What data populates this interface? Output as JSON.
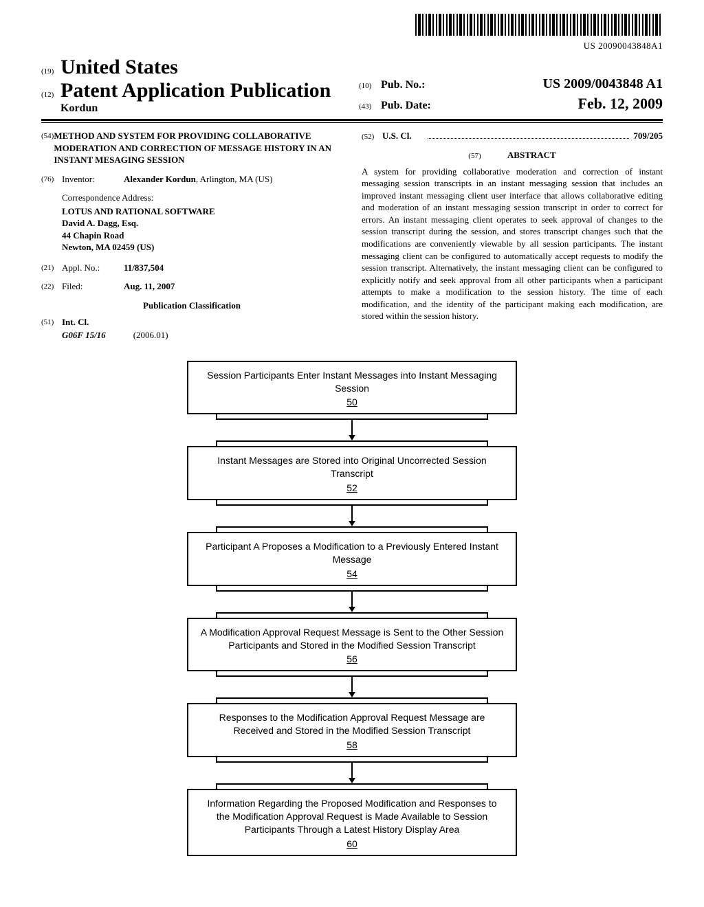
{
  "barcode_number": "US 20090043848A1",
  "header": {
    "country_sup": "(19)",
    "country": "United States",
    "pub_sup": "(12)",
    "pub_title": "Patent Application Publication",
    "author": "Kordun",
    "pubno_sup": "(10)",
    "pubno_label": "Pub. No.:",
    "pubno_value": "US 2009/0043848 A1",
    "pubdate_sup": "(43)",
    "pubdate_label": "Pub. Date:",
    "pubdate_value": "Feb. 12, 2009"
  },
  "left": {
    "title_sup": "(54)",
    "title": "METHOD AND SYSTEM FOR PROVIDING COLLABORATIVE MODERATION AND CORRECTION OF MESSAGE HISTORY IN AN INSTANT MESAGING SESSION",
    "inventor_sup": "(76)",
    "inventor_label": "Inventor:",
    "inventor_name": "Alexander Kordun",
    "inventor_loc": ", Arlington, MA (US)",
    "corr_label": "Correspondence Address:",
    "corr_firm": "LOTUS AND RATIONAL SOFTWARE",
    "corr_name": "David A. Dagg, Esq.",
    "corr_addr1": "44 Chapin Road",
    "corr_addr2": "Newton, MA 02459 (US)",
    "appl_sup": "(21)",
    "appl_label": "Appl. No.:",
    "appl_value": "11/837,504",
    "filed_sup": "(22)",
    "filed_label": "Filed:",
    "filed_value": "Aug. 11, 2007",
    "pub_class": "Publication Classification",
    "intcl_sup": "(51)",
    "intcl_label": "Int. Cl.",
    "intcl_code": "G06F 15/16",
    "intcl_year": "(2006.01)"
  },
  "right": {
    "uscl_sup": "(52)",
    "uscl_label": "U.S. Cl.",
    "uscl_value": "709/205",
    "abstract_sup": "(57)",
    "abstract_label": "ABSTRACT",
    "abstract_text": "A system for providing collaborative moderation and correction of instant messaging session transcripts in an instant messaging session that includes an improved instant messaging client user interface that allows collaborative editing and moderation of an instant messaging session transcript in order to correct for errors. An instant messaging client operates to seek approval of changes to the session transcript during the session, and stores transcript changes such that the modifications are conveniently viewable by all session participants. The instant messaging client can be configured to automatically accept requests to modify the session transcript. Alternatively, the instant messaging client can be configured to explicitly notify and seek approval from all other participants when a participant attempts to make a modification to the session history. The time of each modification, and the identity of the participant making each modification, are stored within the session history."
  },
  "flowchart": {
    "boxes": [
      {
        "text": "Session Participants Enter Instant Messages into Instant Messaging Session",
        "num": "50"
      },
      {
        "text": "Instant Messages are Stored into Original Uncorrected Session Transcript",
        "num": "52"
      },
      {
        "text": "Participant A Proposes a Modification to a Previously Entered Instant Message",
        "num": "54"
      },
      {
        "text": "A Modification Approval Request Message is Sent to the Other Session Participants and Stored in the Modified Session Transcript",
        "num": "56"
      },
      {
        "text": "Responses to the Modification Approval Request Message are Received and Stored in the Modified Session Transcript",
        "num": "58"
      },
      {
        "text": "Information Regarding the Proposed Modification and Responses to the Modification Approval Request is Made Available to Session Participants Through a Latest History Display Area",
        "num": "60"
      }
    ]
  }
}
